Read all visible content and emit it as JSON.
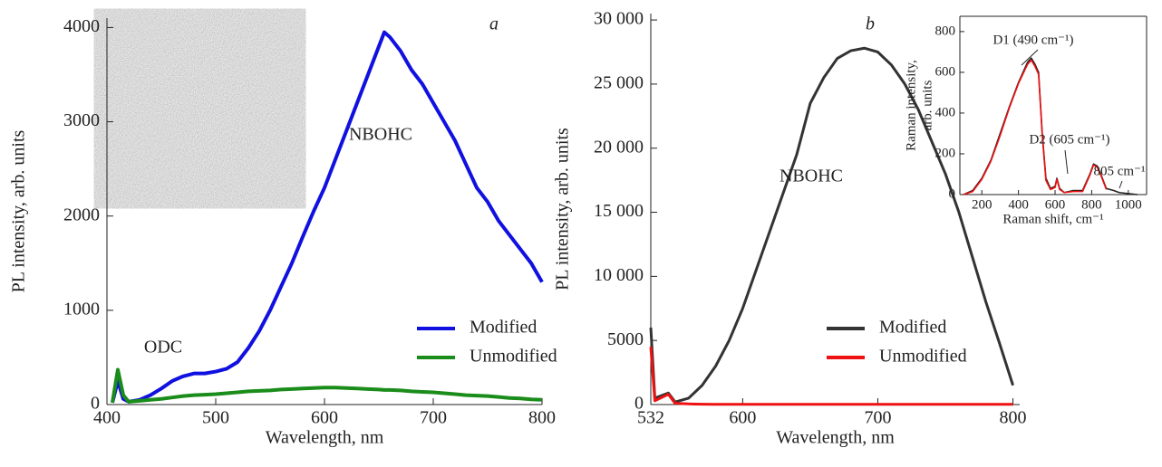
{
  "chart_data": [
    {
      "type": "line",
      "panel_label": "a",
      "x_label": "Wavelength, nm",
      "y_label": "PL intensity, arb. units",
      "annotations": [
        "NBOHC",
        "ODC"
      ],
      "legend": "lower right",
      "xlim": [
        400,
        800
      ],
      "ylim": [
        0,
        4100
      ],
      "xticks": [
        400,
        500,
        600,
        700,
        800
      ],
      "yticks": [
        0,
        1000,
        2000,
        3000,
        4000
      ],
      "x": [
        405,
        410,
        415,
        420,
        430,
        440,
        450,
        460,
        470,
        480,
        490,
        500,
        510,
        520,
        530,
        540,
        550,
        560,
        570,
        580,
        590,
        600,
        610,
        620,
        630,
        640,
        650,
        655,
        660,
        670,
        680,
        690,
        700,
        710,
        720,
        730,
        740,
        750,
        760,
        770,
        780,
        790,
        800
      ],
      "series": [
        {
          "name": "Modified",
          "color": "#1010e0",
          "values": [
            20,
            250,
            60,
            30,
            50,
            100,
            170,
            250,
            300,
            330,
            330,
            350,
            380,
            450,
            600,
            780,
            1000,
            1250,
            1500,
            1780,
            2050,
            2300,
            2600,
            2900,
            3200,
            3500,
            3800,
            3950,
            3900,
            3750,
            3550,
            3400,
            3200,
            3000,
            2800,
            2550,
            2300,
            2150,
            1950,
            1800,
            1650,
            1500,
            1300
          ]
        },
        {
          "name": "Unmodified",
          "color": "#1a8c1a",
          "values": [
            20,
            370,
            100,
            30,
            40,
            50,
            60,
            75,
            90,
            100,
            105,
            110,
            120,
            130,
            140,
            145,
            150,
            160,
            165,
            170,
            175,
            180,
            180,
            175,
            170,
            165,
            160,
            155,
            155,
            150,
            140,
            135,
            130,
            120,
            110,
            100,
            95,
            90,
            80,
            70,
            65,
            55,
            50
          ]
        }
      ]
    },
    {
      "type": "line",
      "panel_label": "b",
      "x_label": "Wavelength, nm",
      "y_label": "PL intensity, arb. units",
      "annotations": [
        "NBOHC"
      ],
      "legend": "lower right",
      "xlim": [
        532,
        805
      ],
      "ylim": [
        0,
        30500
      ],
      "xticks": [
        532,
        600,
        700,
        800
      ],
      "yticks": [
        0,
        5000,
        {
          "value": 10000,
          "label": "10 000"
        },
        {
          "value": 15000,
          "label": "15 000"
        },
        {
          "value": 20000,
          "label": "20 000"
        },
        {
          "value": 25000,
          "label": "25 000"
        },
        {
          "value": 30000,
          "label": "30 000"
        }
      ],
      "x": [
        532,
        535,
        545,
        550,
        560,
        570,
        580,
        590,
        600,
        610,
        620,
        630,
        640,
        645,
        650,
        660,
        670,
        680,
        690,
        700,
        710,
        720,
        730,
        740,
        750,
        760,
        770,
        780,
        790,
        800
      ],
      "series": [
        {
          "name": "Modified",
          "color": "#333333",
          "values": [
            6000,
            500,
            900,
            200,
            500,
            1500,
            3000,
            5000,
            7500,
            10500,
            13500,
            16500,
            19500,
            21500,
            23500,
            25500,
            27000,
            27600,
            27800,
            27500,
            26500,
            25000,
            23000,
            20500,
            18000,
            15000,
            11500,
            8000,
            4800,
            1500
          ]
        },
        {
          "name": "Unmodified",
          "color": "#ee1111",
          "values": [
            4500,
            300,
            800,
            100,
            50,
            30,
            20,
            20,
            20,
            20,
            20,
            20,
            20,
            20,
            20,
            20,
            20,
            20,
            20,
            20,
            20,
            20,
            20,
            20,
            20,
            20,
            20,
            20,
            20,
            20
          ]
        }
      ]
    },
    {
      "type": "line",
      "x_label": "Raman shift, cm⁻¹",
      "y_label": [
        "Raman intensity,",
        "arb. units"
      ],
      "annotations": [
        "D1 (490 cm⁻¹)",
        "D2 (605 cm⁻¹)",
        "805 cm⁻¹"
      ],
      "xlim": [
        80,
        1100
      ],
      "ylim": [
        0,
        875
      ],
      "xticks": [
        200,
        400,
        600,
        800,
        1000
      ],
      "yticks": [
        0,
        200,
        400,
        600,
        800
      ],
      "x": [
        100,
        150,
        200,
        250,
        300,
        350,
        400,
        450,
        470,
        490,
        510,
        530,
        550,
        575,
        600,
        610,
        625,
        650,
        700,
        750,
        790,
        810,
        830,
        850,
        880,
        920,
        950,
        1000,
        1050
      ],
      "series": [
        {
          "color": "#222222",
          "values": [
            0,
            20,
            80,
            170,
            300,
            430,
            550,
            650,
            670,
            640,
            600,
            300,
            80,
            30,
            40,
            80,
            30,
            10,
            20,
            20,
            100,
            150,
            140,
            100,
            30,
            20,
            10,
            5,
            0
          ]
        },
        {
          "color": "#ee1111",
          "values": [
            0,
            15,
            75,
            165,
            290,
            425,
            545,
            640,
            660,
            630,
            590,
            290,
            70,
            25,
            35,
            75,
            25,
            10,
            15,
            15,
            95,
            145,
            135,
            95,
            25,
            null,
            null,
            null,
            null
          ]
        }
      ]
    }
  ]
}
